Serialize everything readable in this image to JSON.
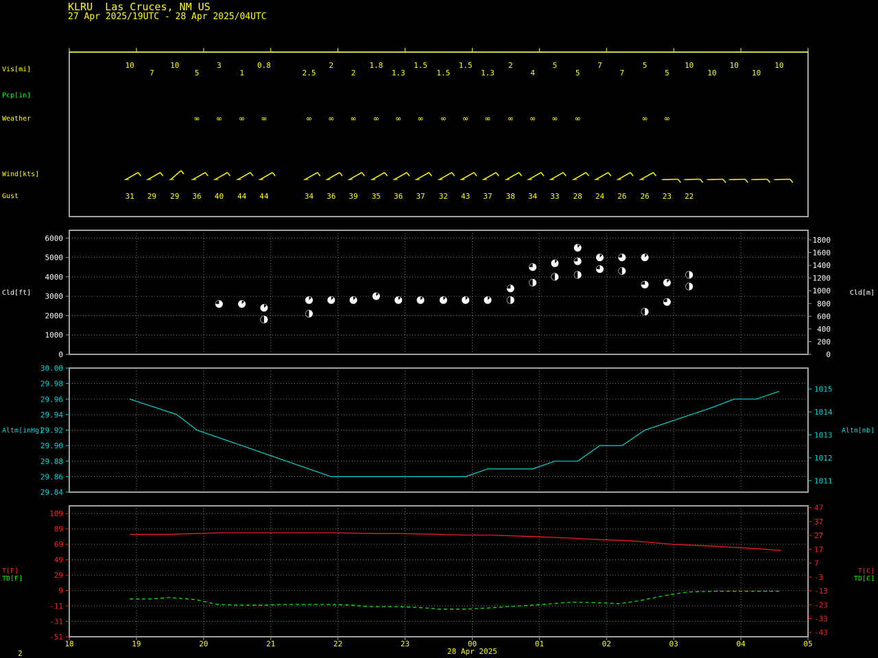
{
  "header": {
    "station_title": "KLRU  Las Cruces, NM US",
    "time_range": "27 Apr 2025/19UTC - 28 Apr 2025/04UTC"
  },
  "footer": {
    "page_number": "2"
  },
  "colors": {
    "background": "#000000",
    "frame": "#a0a0a0",
    "grid": "#808080",
    "text_yellow": "#ffff00",
    "text_green": "#00ff00",
    "cyan": "#00d8d8",
    "red": "#ff2020",
    "white": "#ffffff"
  },
  "chart_data": [
    {
      "type": "table",
      "panel": "surface-observations",
      "row_labels": {
        "visibility": "Vis[mi]",
        "precip": "Pcp[in]",
        "weather": "Weather",
        "wind": "Wind[kts]",
        "gust": "Gust"
      },
      "times_utc_hours": [
        18.9,
        19.23,
        19.57,
        19.9,
        20.23,
        20.57,
        20.9,
        21.57,
        21.9,
        22.23,
        22.57,
        22.9,
        23.23,
        23.57,
        23.9,
        24.23,
        24.57,
        24.9,
        25.23,
        25.57,
        25.9,
        26.23,
        26.57,
        26.9,
        27.23,
        27.57,
        27.9,
        28.23,
        28.57
      ],
      "visibility_mi": [
        "10",
        "7",
        "10",
        "5",
        "3",
        "1",
        "0.8",
        "2.5",
        "2",
        "2",
        "1.8",
        "1.3",
        "1.5",
        "1.5",
        "1.5",
        "1.3",
        "2",
        "4",
        "5",
        "5",
        "7",
        "7",
        "5",
        "5",
        "10",
        "10",
        "10",
        "10",
        "10"
      ],
      "weather_symbol": "∞",
      "weather_present_times": [
        19.9,
        20.23,
        20.57,
        20.9,
        21.57,
        21.9,
        22.23,
        22.57,
        22.9,
        23.23,
        23.57,
        23.9,
        24.23,
        24.57,
        24.9,
        25.23,
        25.57,
        26.57,
        26.9
      ],
      "wind_barb_times": [
        18.9,
        19.23,
        19.57,
        19.9,
        20.23,
        20.57,
        20.9,
        21.57,
        21.9,
        22.23,
        22.57,
        22.9,
        23.23,
        23.57,
        23.9,
        24.23,
        24.57,
        24.9,
        25.23,
        25.57,
        25.9,
        26.23,
        26.57,
        26.9,
        27.23,
        27.57,
        27.9,
        28.23,
        28.57
      ],
      "gust_kts": [
        "31",
        "29",
        "29",
        "36",
        "40",
        "44",
        "44",
        "34",
        "36",
        "39",
        "35",
        "36",
        "37",
        "32",
        "43",
        "37",
        "38",
        "34",
        "33",
        "28",
        "24",
        "26",
        "26",
        "23",
        "22"
      ]
    },
    {
      "type": "scatter",
      "panel": "cloud-cover",
      "ylabel_left": "Cld[ft]",
      "ylabel_right": "Cld[m]",
      "ylim_ft": [
        0,
        6400
      ],
      "yticks_ft": [
        "0",
        "1000",
        "2000",
        "3000",
        "4000",
        "5000",
        "6000"
      ],
      "yticks_m": [
        "0",
        "200",
        "400",
        "600",
        "800",
        "1000",
        "1200",
        "1400",
        "1600",
        "1800"
      ],
      "grid": true,
      "layers": [
        {
          "x": 20.23,
          "ft": 2600,
          "cover": "sct"
        },
        {
          "x": 20.57,
          "ft": 2600,
          "cover": "few"
        },
        {
          "x": 20.9,
          "ft": 1800,
          "cover": "bkn"
        },
        {
          "x": 20.9,
          "ft": 2400,
          "cover": "few"
        },
        {
          "x": 21.57,
          "ft": 2100,
          "cover": "bkn"
        },
        {
          "x": 21.57,
          "ft": 2800,
          "cover": "few"
        },
        {
          "x": 21.9,
          "ft": 2800,
          "cover": "few"
        },
        {
          "x": 22.23,
          "ft": 2800,
          "cover": "few"
        },
        {
          "x": 22.57,
          "ft": 3000,
          "cover": "few"
        },
        {
          "x": 22.9,
          "ft": 2800,
          "cover": "few"
        },
        {
          "x": 23.23,
          "ft": 2800,
          "cover": "few"
        },
        {
          "x": 23.57,
          "ft": 2800,
          "cover": "few"
        },
        {
          "x": 23.9,
          "ft": 2800,
          "cover": "few"
        },
        {
          "x": 24.23,
          "ft": 2800,
          "cover": "few"
        },
        {
          "x": 24.57,
          "ft": 2800,
          "cover": "bkn"
        },
        {
          "x": 24.57,
          "ft": 3400,
          "cover": "sct"
        },
        {
          "x": 24.9,
          "ft": 3700,
          "cover": "bkn"
        },
        {
          "x": 24.9,
          "ft": 4500,
          "cover": "sct"
        },
        {
          "x": 25.23,
          "ft": 4000,
          "cover": "bkn"
        },
        {
          "x": 25.23,
          "ft": 4700,
          "cover": "few"
        },
        {
          "x": 25.57,
          "ft": 4100,
          "cover": "bkn"
        },
        {
          "x": 25.57,
          "ft": 4800,
          "cover": "sct"
        },
        {
          "x": 25.57,
          "ft": 5500,
          "cover": "few"
        },
        {
          "x": 25.9,
          "ft": 4400,
          "cover": "sct"
        },
        {
          "x": 25.9,
          "ft": 5000,
          "cover": "few"
        },
        {
          "x": 26.23,
          "ft": 4300,
          "cover": "bkn"
        },
        {
          "x": 26.23,
          "ft": 5000,
          "cover": "sct"
        },
        {
          "x": 26.57,
          "ft": 2200,
          "cover": "bkn"
        },
        {
          "x": 26.57,
          "ft": 3600,
          "cover": "sct"
        },
        {
          "x": 26.57,
          "ft": 5000,
          "cover": "few"
        },
        {
          "x": 26.9,
          "ft": 2700,
          "cover": "sct"
        },
        {
          "x": 26.9,
          "ft": 3700,
          "cover": "few"
        },
        {
          "x": 27.23,
          "ft": 3500,
          "cover": "bkn"
        },
        {
          "x": 27.23,
          "ft": 4100,
          "cover": "bkn"
        }
      ]
    },
    {
      "type": "line",
      "panel": "altimeter",
      "ylabel_left": "Altm[inHg]",
      "ylabel_right": "Altm[mb]",
      "ylim": [
        29.84,
        30.0
      ],
      "yticks_left": [
        "29.84",
        "29.86",
        "29.88",
        "29.90",
        "29.92",
        "29.94",
        "29.96",
        "29.98",
        "30.00"
      ],
      "yticks_right": [
        "1011",
        "1012",
        "1013",
        "1014",
        "1015"
      ],
      "series": [
        {
          "color": "#00d8d8",
          "x": [
            18.9,
            19.6,
            19.9,
            20.9,
            21.9,
            23.9,
            24.23,
            24.9,
            25.23,
            25.57,
            25.9,
            26.23,
            26.57,
            27.6,
            27.9,
            28.23,
            28.57
          ],
          "y": [
            29.96,
            29.94,
            29.92,
            29.89,
            29.86,
            29.86,
            29.87,
            29.87,
            29.88,
            29.88,
            29.9,
            29.9,
            29.92,
            29.95,
            29.96,
            29.96,
            29.97
          ]
        }
      ]
    },
    {
      "type": "line",
      "panel": "temperature",
      "ylabel_left_t": "T[F]",
      "ylabel_left_td": "TD[F]",
      "ylabel_right_t": "T[C]",
      "ylabel_right_td": "TD[C]",
      "ylim": [
        -51,
        119
      ],
      "yticks_left": [
        "-51",
        "-31",
        "-11",
        "9",
        "29",
        "49",
        "69",
        "89",
        "109"
      ],
      "yticks_right": [
        "-43",
        "-33",
        "-23",
        "-13",
        "-3",
        "7",
        "17",
        "27",
        "37",
        "47"
      ],
      "xtick_labels": [
        "18",
        "19",
        "20",
        "21",
        "22",
        "23",
        "00",
        "01",
        "02",
        "03",
        "04",
        "05"
      ],
      "x_date_label": "28 Apr 2025",
      "series": [
        {
          "name": "T[F]",
          "color": "#ff2020",
          "dashed": false,
          "x": [
            18.9,
            19.5,
            19.9,
            20.3,
            20.9,
            21.5,
            21.9,
            22.5,
            22.9,
            23.5,
            23.9,
            24.3,
            24.9,
            25.5,
            25.9,
            26.3,
            26.6,
            27.0,
            27.5,
            27.9,
            28.3,
            28.6
          ],
          "y": [
            82,
            82,
            83,
            84,
            84,
            84,
            84,
            83,
            83,
            82,
            81,
            81,
            79,
            77,
            75,
            74,
            72,
            69,
            67,
            65,
            63,
            61
          ]
        },
        {
          "name": "TD[F]",
          "color": "#00ff00",
          "dashed": true,
          "x": [
            18.9,
            19.2,
            19.5,
            19.9,
            20.2,
            20.5,
            20.9,
            21.2,
            21.6,
            21.9,
            22.2,
            22.5,
            22.9,
            23.2,
            23.5,
            23.9,
            24.2,
            24.5,
            24.9,
            25.2,
            25.5,
            25.9,
            26.2,
            26.5,
            26.9,
            27.2,
            27.6,
            27.9,
            28.3,
            28.6
          ],
          "y": [
            -2,
            -2,
            0,
            -3,
            -9,
            -10,
            -10,
            -9,
            -9,
            -9,
            -10,
            -12,
            -12,
            -13,
            -15,
            -15,
            -14,
            -12,
            -10,
            -8,
            -6,
            -7,
            -8,
            -4,
            3,
            7,
            8,
            8,
            8,
            8
          ]
        }
      ]
    }
  ]
}
